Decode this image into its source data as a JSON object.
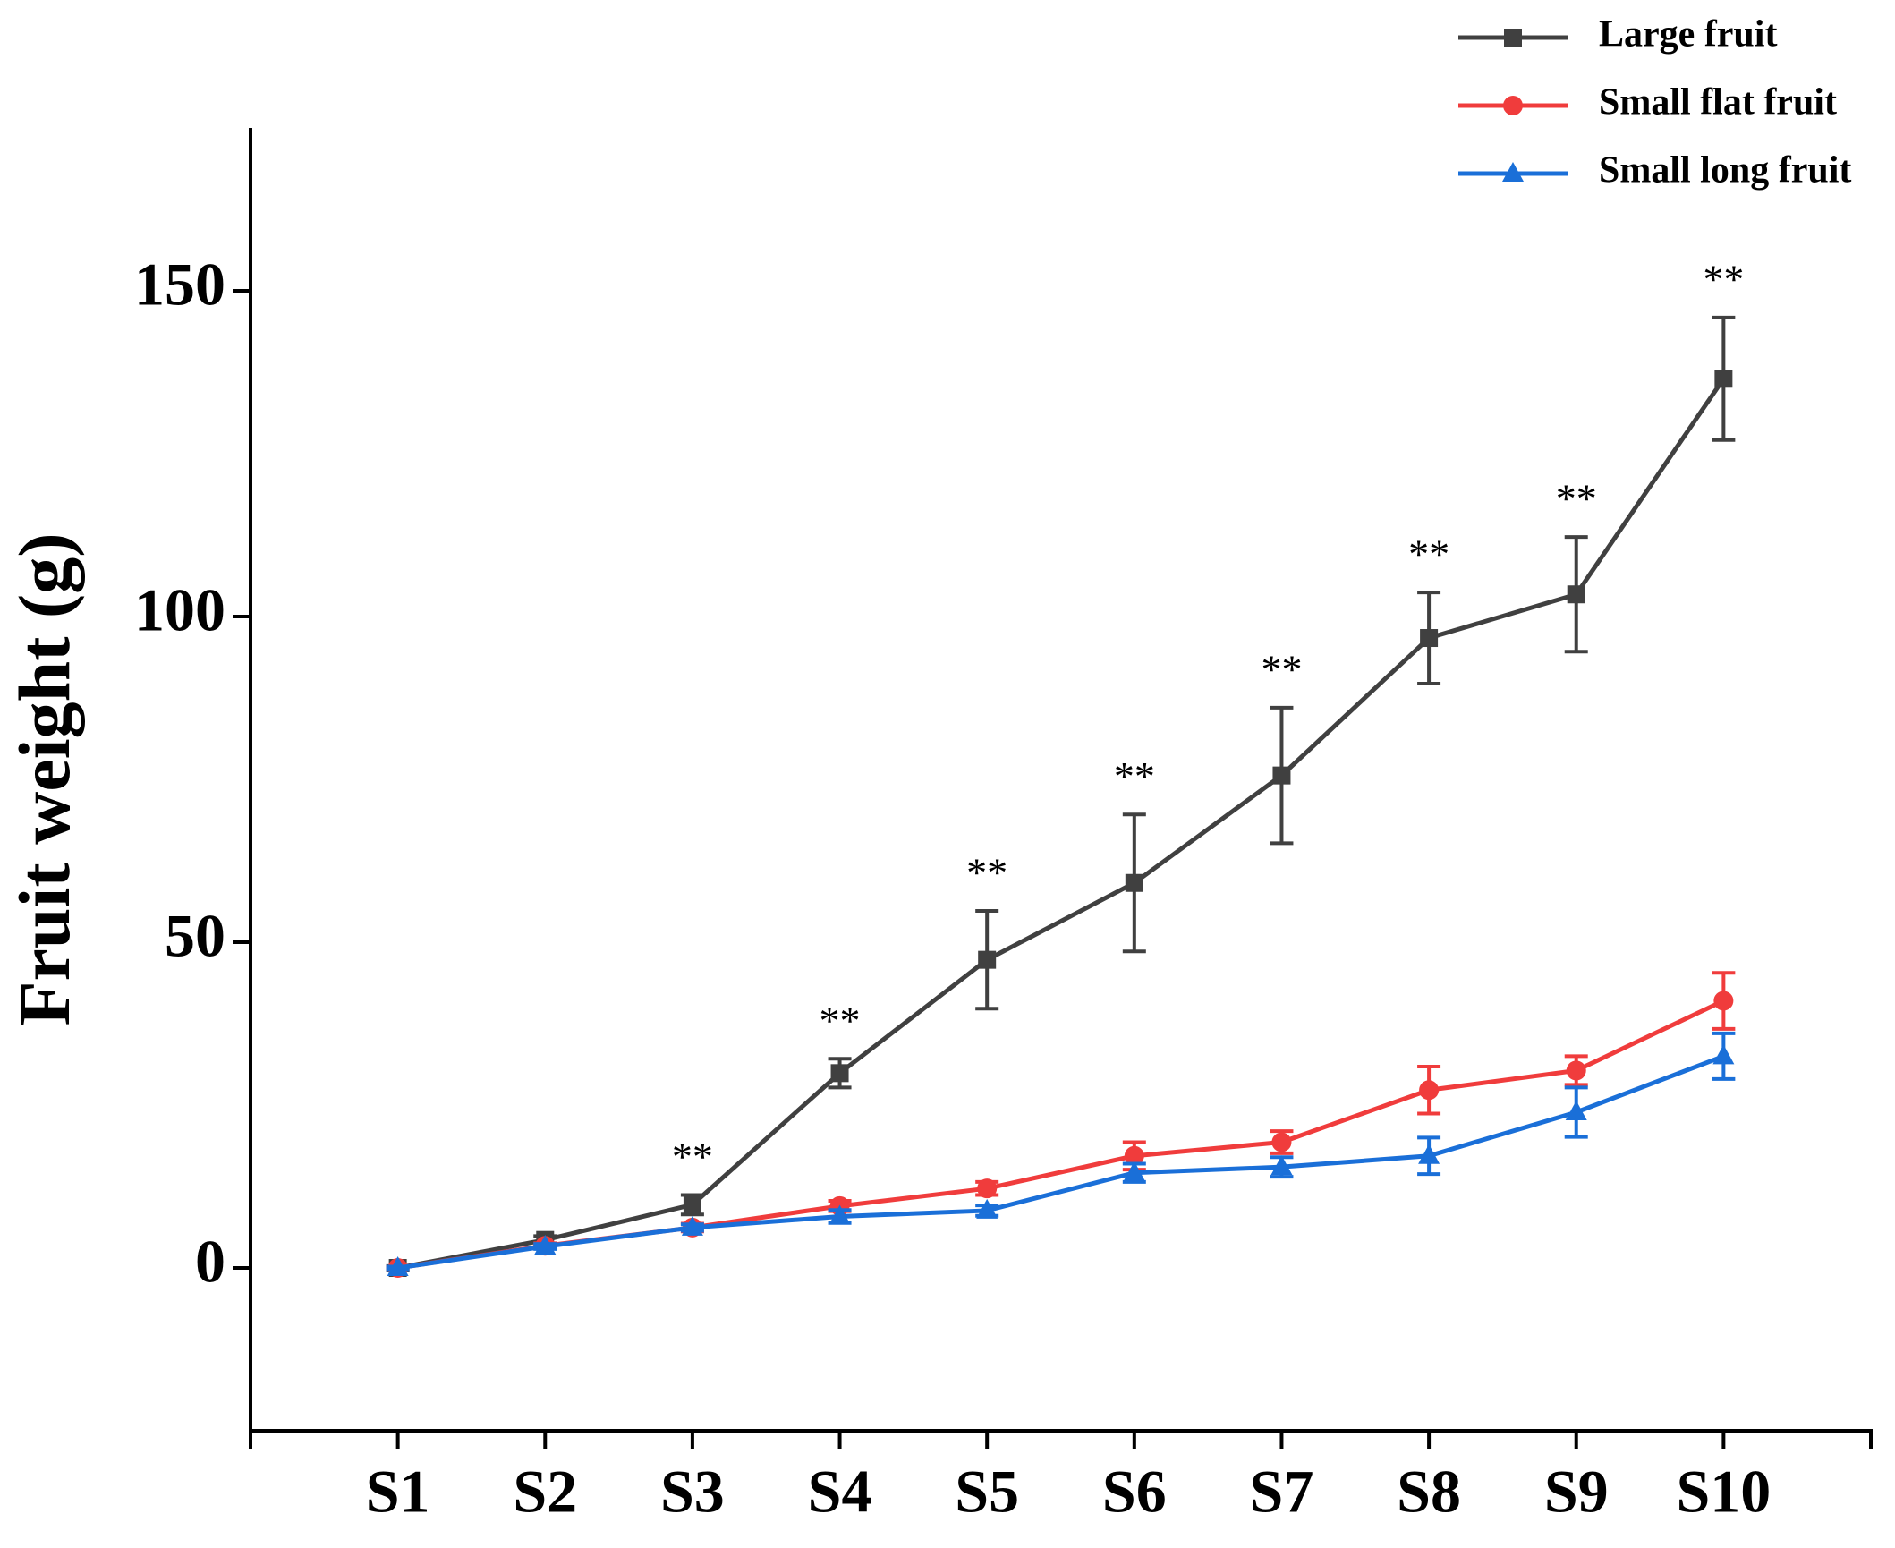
{
  "chart_data": {
    "type": "line",
    "y_label": "Fruit weight (g)",
    "categories": [
      "S1",
      "S2",
      "S3",
      "S4",
      "S5",
      "S6",
      "S7",
      "S8",
      "S9",
      "S10"
    ],
    "series": [
      {
        "name": "Large fruit",
        "color": "#404040",
        "marker": "square",
        "values": [
          0,
          4.3,
          9.7,
          29.9,
          47.3,
          59.1,
          75.6,
          96.7,
          103.4,
          136.5
        ],
        "errors": [
          0.3,
          0.6,
          1.5,
          2.2,
          7.5,
          10.5,
          10.4,
          7.0,
          8.8,
          9.4
        ]
      },
      {
        "name": "Small flat fruit",
        "color": "#f03c3c",
        "marker": "circle",
        "values": [
          0,
          3.4,
          6.2,
          9.5,
          12.2,
          17.2,
          19.3,
          27.3,
          30.3,
          41.0
        ],
        "errors": [
          0.2,
          0.4,
          0.6,
          0.8,
          1.0,
          2.1,
          1.7,
          3.6,
          2.2,
          4.3
        ]
      },
      {
        "name": "Small long fruit",
        "color": "#1a6fd8",
        "marker": "triangle",
        "values": [
          0,
          3.3,
          6.2,
          7.9,
          8.8,
          14.6,
          15.5,
          17.2,
          23.9,
          32.5
        ],
        "errors": [
          0.2,
          0.4,
          0.5,
          1.0,
          0.8,
          1.4,
          1.5,
          2.8,
          3.8,
          3.5
        ]
      }
    ],
    "significance": [
      null,
      null,
      "**",
      "**",
      "**",
      "**",
      "**",
      "**",
      "**",
      "**"
    ],
    "ylim": [
      -25,
      175
    ],
    "yticks": [
      0,
      50,
      100,
      150
    ],
    "grid": false,
    "legend": "top-right"
  }
}
